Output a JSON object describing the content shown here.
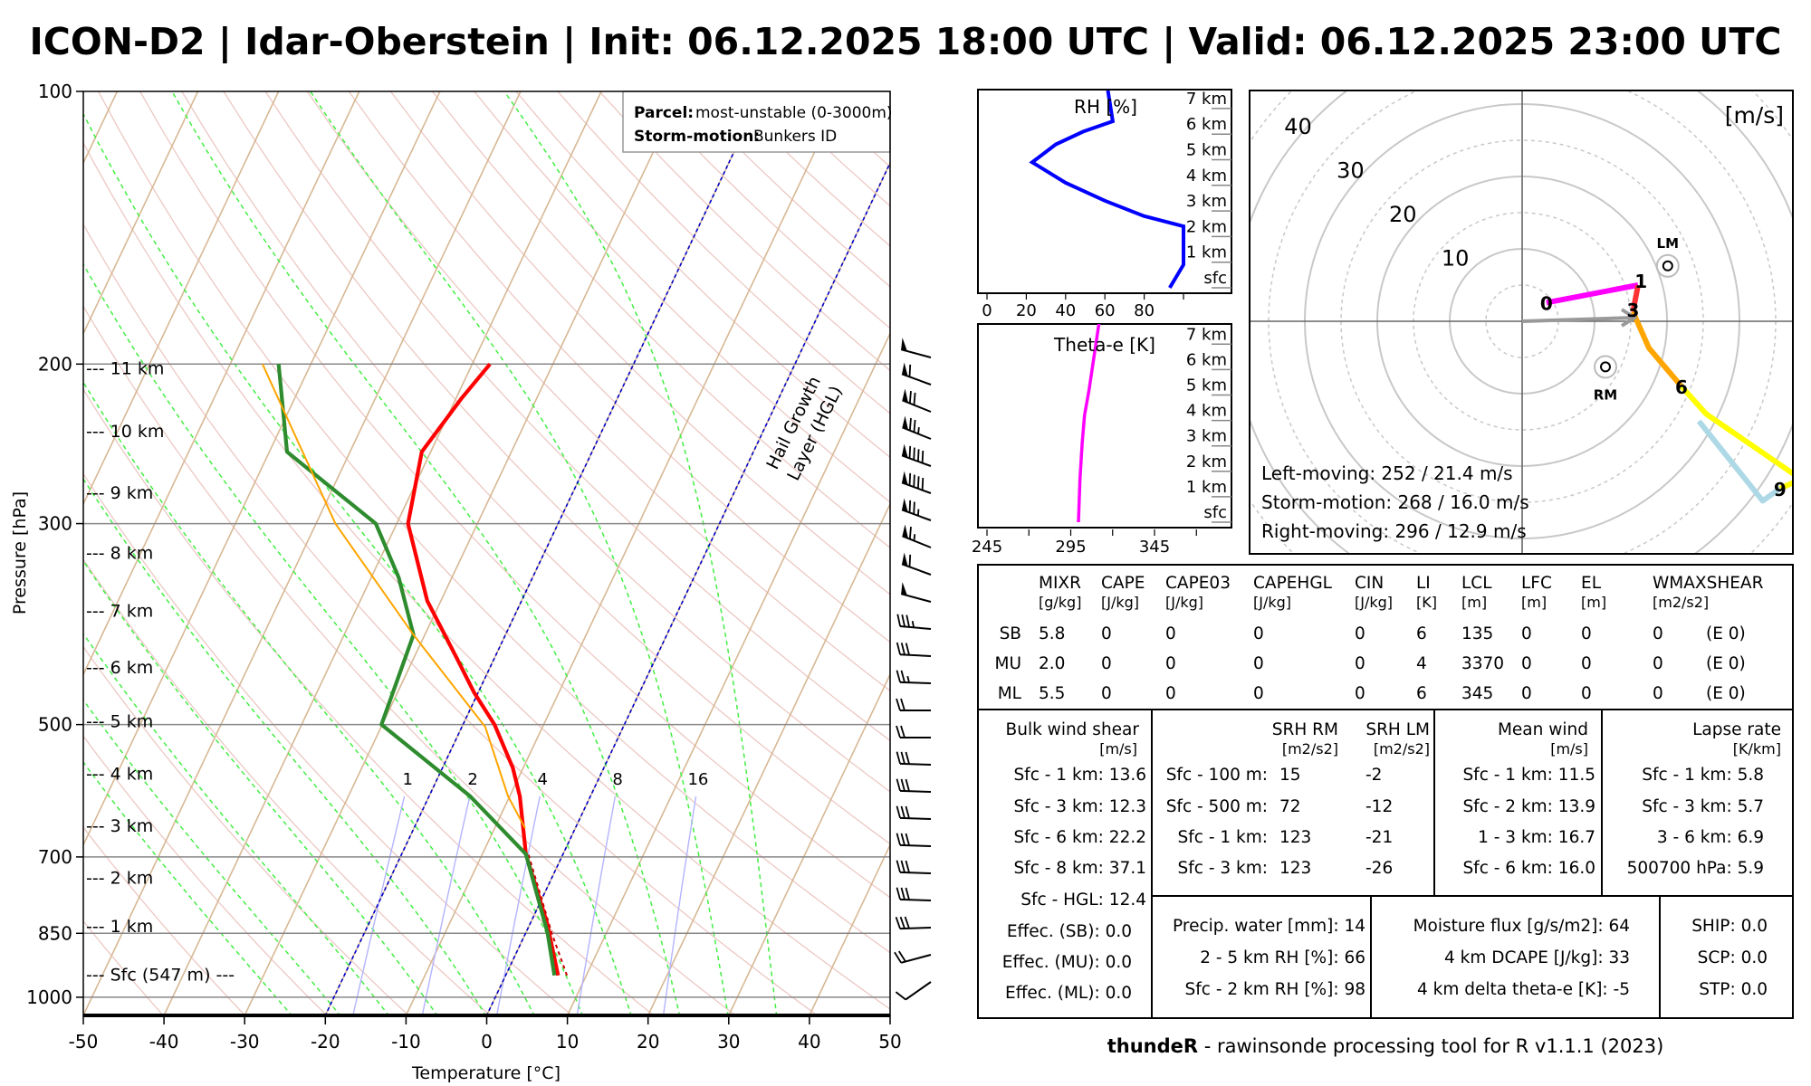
{
  "title": "ICON-D2 | Idar-Oberstein | Init: 06.12.2025 18:00 UTC | Valid: 06.12.2025 23:00 UTC",
  "legend": {
    "parcel_label": "Parcel:",
    "parcel_value": "most-unstable (0-3000m)",
    "storm_label": "Storm-motion:",
    "storm_value": "Bunkers ID"
  },
  "chart_data": [
    {
      "type": "line",
      "title": "Skew-T log-p",
      "xlabel": "Temperature [°C]",
      "ylabel": "Pressure [hPa]",
      "xlim": [
        -50,
        50
      ],
      "ylim": [
        1050,
        100
      ],
      "xticks": [
        "-50",
        "-40",
        "-30",
        "-20",
        "-10",
        "0",
        "10",
        "20",
        "30",
        "40",
        "50"
      ],
      "yticks": [
        {
          "p": 100,
          "label": "100"
        },
        {
          "p": 200,
          "label": "200"
        },
        {
          "p": 300,
          "label": "300"
        },
        {
          "p": 500,
          "label": "500"
        },
        {
          "p": 700,
          "label": "700"
        },
        {
          "p": 850,
          "label": "850"
        },
        {
          "p": 1000,
          "label": "1000"
        }
      ],
      "height_labels": [
        {
          "p": 202,
          "text": "--- 11 km"
        },
        {
          "p": 237,
          "text": "--- 10 km"
        },
        {
          "p": 277,
          "text": "--- 9 km"
        },
        {
          "p": 323,
          "text": "--- 8 km"
        },
        {
          "p": 374,
          "text": "--- 7 km"
        },
        {
          "p": 432,
          "text": "--- 6 km"
        },
        {
          "p": 495,
          "text": "--- 5 km"
        },
        {
          "p": 566,
          "text": "--- 4 km"
        },
        {
          "p": 646,
          "text": "--- 3 km"
        },
        {
          "p": 737,
          "text": "--- 2 km"
        },
        {
          "p": 834,
          "text": "--- 1 km"
        },
        {
          "p": 943,
          "text": "--- Sfc (547 m) ---"
        }
      ],
      "mixing_ratio_labels": [
        "1",
        "2",
        "4",
        "8",
        "16"
      ],
      "mixing_ratio_values": [
        1,
        2,
        4,
        8,
        16
      ],
      "hgl_label": [
        "Hail Growth",
        "Layer (HGL)"
      ],
      "hgl_isotherms": [
        0,
        -20
      ],
      "series": [
        {
          "name": "temperature",
          "color": "#ff0000",
          "points": [
            [
              946,
              6.5
            ],
            [
              829,
              2.1
            ],
            [
              695,
              -4.6
            ],
            [
              600,
              -8.75
            ],
            [
              558,
              -11.3
            ],
            [
              500,
              -16.1
            ],
            [
              461,
              -20.5
            ],
            [
              422,
              -24.7
            ],
            [
              365,
              -31.7
            ],
            [
              300,
              -38.6
            ],
            [
              250,
              -41.1
            ],
            [
              218,
              -39.3
            ],
            [
              200,
              -37.8
            ]
          ]
        },
        {
          "name": "virtual-temperature",
          "color": "#cc0000",
          "points": [
            [
              946,
              7.6
            ],
            [
              849,
              3.2
            ],
            [
              695,
              -4.3
            ]
          ]
        },
        {
          "name": "dewpoint",
          "color": "#2e8b2e",
          "points": [
            [
              946,
              6.05
            ],
            [
              849,
              2.7
            ],
            [
              695,
              -4.6
            ],
            [
              600,
              -14.9
            ],
            [
              500,
              -30.1
            ],
            [
              398,
              -31.4
            ],
            [
              344,
              -36.6
            ],
            [
              300,
              -42.6
            ],
            [
              250,
              -57.8
            ],
            [
              200,
              -64
            ]
          ]
        },
        {
          "name": "parcel",
          "color": "#ffa500",
          "points": [
            [
              651,
              -6.2
            ],
            [
              600,
              -10.2
            ],
            [
              503,
              -17.1
            ],
            [
              398,
              -31.4
            ],
            [
              300,
              -47.6
            ],
            [
              200,
              -66
            ]
          ]
        }
      ],
      "wind_barbs": {
        "speed_kt": [
          50,
          60,
          70,
          75,
          90,
          90,
          75,
          65,
          60,
          50,
          35,
          30,
          25,
          20,
          20,
          30,
          30,
          30,
          30,
          30,
          30,
          30,
          20,
          10
        ],
        "direction_deg": [
          285,
          290,
          292,
          292,
          290,
          290,
          290,
          292,
          290,
          285,
          275,
          273,
          272,
          270,
          270,
          272,
          272,
          272,
          272,
          272,
          272,
          268,
          255,
          235
        ]
      }
    },
    {
      "type": "line",
      "title": "RH [%]",
      "xlim": [
        0,
        100
      ],
      "xticks": [
        "0",
        "20",
        "40",
        "60",
        "80"
      ],
      "height_labels": [
        "sfc",
        "1 km",
        "2 km",
        "3 km",
        "4 km",
        "5 km",
        "6 km",
        "7 km"
      ],
      "color": "#0000ff",
      "points_km_value": [
        [
          0,
          93
        ],
        [
          0.9,
          100
        ],
        [
          2.4,
          100
        ],
        [
          2.8,
          80
        ],
        [
          3.4,
          60
        ],
        [
          4.1,
          40
        ],
        [
          4.9,
          23
        ],
        [
          5.6,
          35
        ],
        [
          6.1,
          49
        ],
        [
          6.5,
          64
        ],
        [
          7.7,
          61.5
        ]
      ]
    },
    {
      "type": "line",
      "title": "Theta-e [K]",
      "xlim": [
        245,
        390
      ],
      "xticks": [
        "245",
        "295",
        "345"
      ],
      "height_labels": [
        "sfc",
        "1 km",
        "2 km",
        "3 km",
        "4 km",
        "5 km",
        "6 km",
        "7 km"
      ],
      "color": "#ff00ff",
      "points_km_value": [
        [
          0,
          299.6
        ],
        [
          1.7,
          300.5
        ],
        [
          3.1,
          301.8
        ],
        [
          4.2,
          303.2
        ],
        [
          5.2,
          305.9
        ],
        [
          6.4,
          308.6
        ],
        [
          7.8,
          311.8
        ]
      ]
    },
    {
      "type": "line",
      "title": "Hodograph",
      "unit_label": "[m/s]",
      "ring_labels": [
        "10",
        "20",
        "30",
        "40"
      ],
      "segments": [
        {
          "name": "0-1 km",
          "color": "#ff00ff",
          "points": [
            [
              3.35,
              2.58
            ],
            [
              16.0,
              5.0
            ]
          ]
        },
        {
          "name": "1-3 km",
          "color": "#ff3333",
          "points": [
            [
              16.0,
              5.0
            ],
            [
              15.3,
              1.3
            ]
          ]
        },
        {
          "name": "3-6 km",
          "color": "#ffa500",
          "points": [
            [
              15.3,
              1.3
            ],
            [
              17.5,
              -3.7
            ],
            [
              22.0,
              -9.0
            ]
          ]
        },
        {
          "name": "6-9 km",
          "color": "#ffff00",
          "points": [
            [
              22.0,
              -9.0
            ],
            [
              25.4,
              -12.8
            ],
            [
              38.5,
              -21.8
            ],
            [
              35.6,
              -23.1
            ]
          ]
        },
        {
          "name": "9+ km",
          "color": "#add8e6",
          "points": [
            [
              35.6,
              -23.1
            ],
            [
              33.2,
              -24.8
            ],
            [
              24.4,
              -13.8
            ]
          ]
        }
      ],
      "height_marks": [
        {
          "text": "0",
          "u": 3.35,
          "v": 2.58
        },
        {
          "text": "1",
          "u": 16.4,
          "v": 5.6
        },
        {
          "text": "3",
          "u": 15.3,
          "v": 1.6
        },
        {
          "text": "6",
          "u": 22.0,
          "v": -9.0
        },
        {
          "text": "9",
          "u": 35.6,
          "v": -23.1
        }
      ],
      "storm_motion": {
        "u": 15.5,
        "v": 0.5
      },
      "left_mover": {
        "label": "LM",
        "u": 20.1,
        "v": 7.65
      },
      "right_mover": {
        "label": "RM",
        "u": 11.5,
        "v": -6.3
      },
      "info": [
        "Left-moving: 252 / 21.4 m/s",
        "Storm-motion: 268 / 16.0 m/s",
        "Right-moving: 296 / 12.9 m/s"
      ]
    }
  ],
  "params": {
    "columns": [
      {
        "name": "MIXR",
        "unit": "[g/kg]"
      },
      {
        "name": "CAPE",
        "unit": "[J/kg]"
      },
      {
        "name": "CAPE03",
        "unit": "[J/kg]"
      },
      {
        "name": "CAPEHGL",
        "unit": "[J/kg]"
      },
      {
        "name": "CIN",
        "unit": "[J/kg]"
      },
      {
        "name": "LI",
        "unit": "[K]"
      },
      {
        "name": "LCL",
        "unit": "[m]"
      },
      {
        "name": "LFC",
        "unit": "[m]"
      },
      {
        "name": "EL",
        "unit": "[m]"
      },
      {
        "name": "WMAXSHEAR",
        "unit": "[m2/s2]"
      }
    ],
    "rows": [
      {
        "label": "SB",
        "values": [
          "5.8",
          "0",
          "0",
          "0",
          "0",
          "6",
          "135",
          "0",
          "0",
          "0",
          "(E 0)"
        ]
      },
      {
        "label": "MU",
        "values": [
          "2.0",
          "0",
          "0",
          "0",
          "0",
          "4",
          "3370",
          "0",
          "0",
          "0",
          "(E 0)"
        ]
      },
      {
        "label": "ML",
        "values": [
          "5.5",
          "0",
          "0",
          "0",
          "0",
          "6",
          "345",
          "0",
          "0",
          "0",
          "(E 0)"
        ]
      }
    ],
    "bulk_shear": {
      "title": "Bulk wind shear",
      "unit": "[m/s]",
      "items": [
        "Sfc - 1 km: 13.6",
        "Sfc - 3 km: 12.3",
        "Sfc - 6 km: 22.2",
        "Sfc - 8 km: 37.1",
        "Sfc - HGL: 12.4",
        "Effec. (SB): 0.0",
        "Effec. (MU): 0.0",
        "Effec. (ML): 0.0"
      ]
    },
    "srh": {
      "title_rm": "SRH RM",
      "title_lm": "SRH LM",
      "unit_rm": "[m2/s2]",
      "unit_lm": "[m2/s2]",
      "rows": [
        {
          "label": "Sfc - 100 m:",
          "rm": "15",
          "lm": "-2"
        },
        {
          "label": "Sfc - 500 m:",
          "rm": "72",
          "lm": "-12"
        },
        {
          "label": "Sfc - 1 km:",
          "rm": "123",
          "lm": "-21"
        },
        {
          "label": "Sfc - 3 km:",
          "rm": "123",
          "lm": "-26"
        }
      ]
    },
    "mean_wind": {
      "title": "Mean wind",
      "unit": "[m/s]",
      "items": [
        "Sfc - 1 km: 11.5",
        "Sfc - 2 km: 13.9",
        "1 - 3 km: 16.7",
        "Sfc - 6 km: 16.0"
      ]
    },
    "lapse_rate": {
      "title": "Lapse rate",
      "unit": "[K/km]",
      "items": [
        "Sfc - 1 km: 5.8",
        "Sfc - 3 km: 5.7",
        "3 - 6 km: 6.9",
        "500700 hPa: 5.9"
      ]
    },
    "moisture": [
      "Precip. water [mm]: 14",
      "2 - 5 km RH [%]: 66",
      "Sfc - 2 km RH [%]: 98"
    ],
    "flux": [
      "Moisture flux [g/s/m2]: 64",
      "4 km DCAPE [J/kg]: 33",
      "4 km delta theta-e [K]: -5"
    ],
    "composite": [
      "SHIP: 0.0",
      "SCP: 0.0",
      "STP: 0.0"
    ]
  },
  "footer": {
    "brand": "thundeR",
    "text": " - rawinsonde processing tool for R v1.1.1 (2023)"
  }
}
